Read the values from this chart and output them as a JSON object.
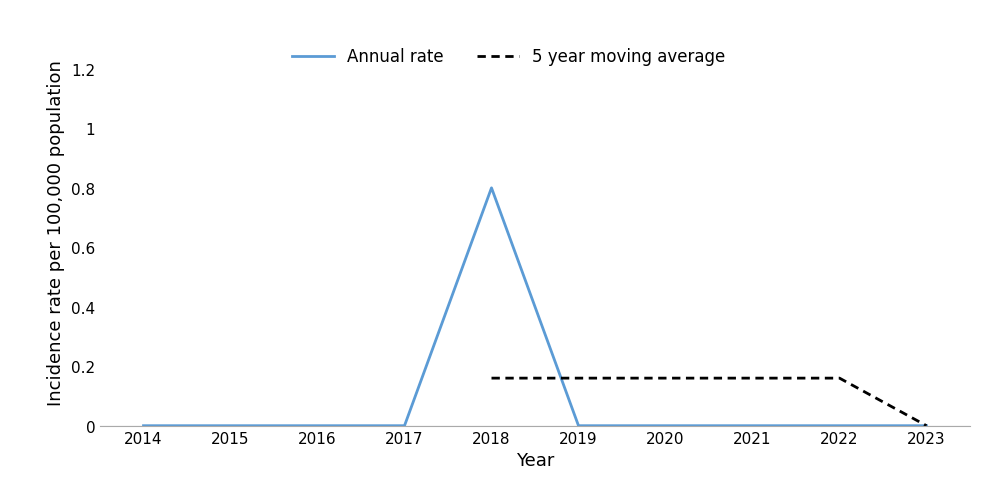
{
  "years": [
    2014,
    2015,
    2016,
    2017,
    2018,
    2019,
    2020,
    2021,
    2022,
    2023
  ],
  "annual_rate": [
    0.0,
    0.0,
    0.0,
    0.0,
    0.8,
    0.0,
    0.0,
    0.0,
    0.0,
    0.0
  ],
  "moving_avg_years": [
    2018,
    2019,
    2020,
    2021,
    2022,
    2023
  ],
  "moving_avg": [
    0.16,
    0.16,
    0.16,
    0.16,
    0.16,
    0.0
  ],
  "annual_color": "#5B9BD5",
  "moving_avg_color": "#000000",
  "xlabel": "Year",
  "ylabel": "Incidence rate per 100,000 population",
  "ylim": [
    0,
    1.3
  ],
  "yticks": [
    0,
    0.2,
    0.4,
    0.6,
    0.8,
    1.0,
    1.2
  ],
  "xlim": [
    2013.5,
    2023.5
  ],
  "legend_annual": "Annual rate",
  "legend_mavg": "5 year moving average",
  "axis_fontsize": 13,
  "tick_fontsize": 11
}
